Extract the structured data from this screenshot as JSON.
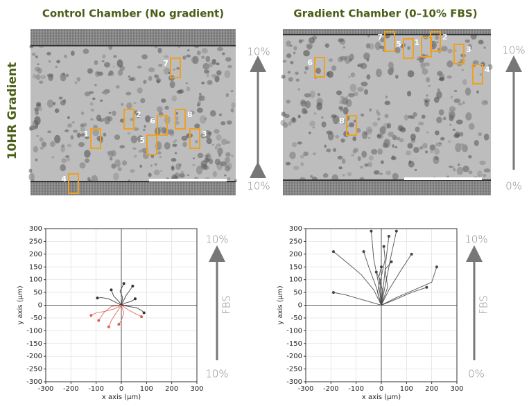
{
  "header": {
    "control_title": "Control Chamber (No gradient)",
    "gradient_title": "Gradient Chamber (0–10% FBS)",
    "side_label": "10HR Gradient"
  },
  "images": [
    {
      "cells": [
        "7",
        "2",
        "6",
        "8",
        "1",
        "5",
        "3",
        "4"
      ],
      "top_label": "10%",
      "bottom_label": "10%"
    },
    {
      "cells": [
        "7",
        "5",
        "1",
        "2",
        "3",
        "6",
        "4",
        "8"
      ],
      "top_label": "10%",
      "bottom_label": "0%"
    }
  ],
  "chart_data": [
    {
      "type": "line",
      "xlabel": "x axis (μm)",
      "ylabel": "y axis (μm)",
      "xlim": [
        -300,
        300
      ],
      "ylim": [
        -300,
        300
      ],
      "xticks": [
        -300,
        -200,
        -100,
        0,
        100,
        200,
        300
      ],
      "yticks": [
        -300,
        -250,
        -200,
        -150,
        -100,
        -50,
        0,
        50,
        100,
        150,
        200,
        250,
        300
      ],
      "grid": true,
      "top_label": "10%",
      "mid_label": "FBS",
      "bottom_label": "10%",
      "series": [
        {
          "color": "#333333",
          "x": [
            0,
            -20,
            -50,
            -80,
            -95
          ],
          "y": [
            0,
            10,
            25,
            30,
            28
          ]
        },
        {
          "color": "#333333",
          "x": [
            0,
            10,
            20,
            35,
            45
          ],
          "y": [
            0,
            20,
            40,
            60,
            75
          ]
        },
        {
          "color": "#333333",
          "x": [
            0,
            -10,
            -30,
            -40
          ],
          "y": [
            0,
            15,
            35,
            60
          ]
        },
        {
          "color": "#333333",
          "x": [
            0,
            20,
            40,
            55
          ],
          "y": [
            0,
            10,
            15,
            25
          ]
        },
        {
          "color": "#333333",
          "x": [
            0,
            5,
            -5,
            10
          ],
          "y": [
            0,
            30,
            55,
            85
          ]
        },
        {
          "color": "#333333",
          "x": [
            0,
            30,
            60,
            80,
            90
          ],
          "y": [
            0,
            -5,
            -10,
            -20,
            -30
          ]
        },
        {
          "color": "#e06050",
          "x": [
            0,
            -30,
            -70,
            -100,
            -120
          ],
          "y": [
            0,
            -15,
            -25,
            -30,
            -40
          ]
        },
        {
          "color": "#e06050",
          "x": [
            0,
            -20,
            -40,
            -50
          ],
          "y": [
            0,
            -30,
            -60,
            -85
          ]
        },
        {
          "color": "#e06050",
          "x": [
            0,
            30,
            60,
            80
          ],
          "y": [
            0,
            -20,
            -35,
            -45
          ]
        },
        {
          "color": "#e06050",
          "x": [
            0,
            10,
            0,
            -10
          ],
          "y": [
            0,
            -30,
            -60,
            -75
          ]
        },
        {
          "color": "#e06050",
          "x": [
            0,
            -40,
            -70,
            -90
          ],
          "y": [
            0,
            -5,
            -30,
            -60
          ]
        }
      ]
    },
    {
      "type": "line",
      "xlabel": "x axis (μm)",
      "ylabel": "y axis (μm)",
      "xlim": [
        -300,
        300
      ],
      "ylim": [
        -300,
        300
      ],
      "xticks": [
        -300,
        -200,
        -100,
        0,
        100,
        200,
        300
      ],
      "yticks": [
        -300,
        -250,
        -200,
        -150,
        -100,
        -50,
        0,
        50,
        100,
        150,
        200,
        250,
        300
      ],
      "grid": true,
      "top_label": "10%",
      "mid_label": "FBS",
      "bottom_label": "0%",
      "series": [
        {
          "color": "#444444",
          "x": [
            0,
            -70,
            -140,
            -190
          ],
          "y": [
            0,
            20,
            40,
            50
          ]
        },
        {
          "color": "#444444",
          "x": [
            0,
            -30,
            -80,
            -140,
            -190
          ],
          "y": [
            0,
            60,
            120,
            170,
            210
          ]
        },
        {
          "color": "#444444",
          "x": [
            0,
            -10,
            -30,
            -40
          ],
          "y": [
            0,
            80,
            180,
            290
          ]
        },
        {
          "color": "#444444",
          "x": [
            0,
            10,
            20,
            30
          ],
          "y": [
            0,
            90,
            190,
            270
          ]
        },
        {
          "color": "#444444",
          "x": [
            0,
            20,
            40,
            60
          ],
          "y": [
            0,
            100,
            200,
            290
          ]
        },
        {
          "color": "#444444",
          "x": [
            0,
            -20,
            -50,
            -70
          ],
          "y": [
            0,
            70,
            150,
            210
          ]
        },
        {
          "color": "#444444",
          "x": [
            0,
            30,
            80,
            120
          ],
          "y": [
            0,
            60,
            140,
            200
          ]
        },
        {
          "color": "#444444",
          "x": [
            0,
            60,
            130,
            200,
            220
          ],
          "y": [
            0,
            30,
            60,
            90,
            150
          ]
        },
        {
          "color": "#444444",
          "x": [
            0,
            50,
            120,
            180
          ],
          "y": [
            0,
            20,
            50,
            70
          ]
        },
        {
          "color": "#444444",
          "x": [
            0,
            5,
            -10,
            0
          ],
          "y": [
            0,
            60,
            110,
            150
          ]
        },
        {
          "color": "#444444",
          "x": [
            0,
            -15,
            -5,
            -20
          ],
          "y": [
            0,
            50,
            100,
            130
          ]
        },
        {
          "color": "#444444",
          "x": [
            0,
            25,
            15,
            40
          ],
          "y": [
            0,
            70,
            140,
            170
          ]
        },
        {
          "color": "#444444",
          "x": [
            0,
            -5,
            15,
            10
          ],
          "y": [
            0,
            90,
            180,
            230
          ]
        }
      ]
    }
  ]
}
